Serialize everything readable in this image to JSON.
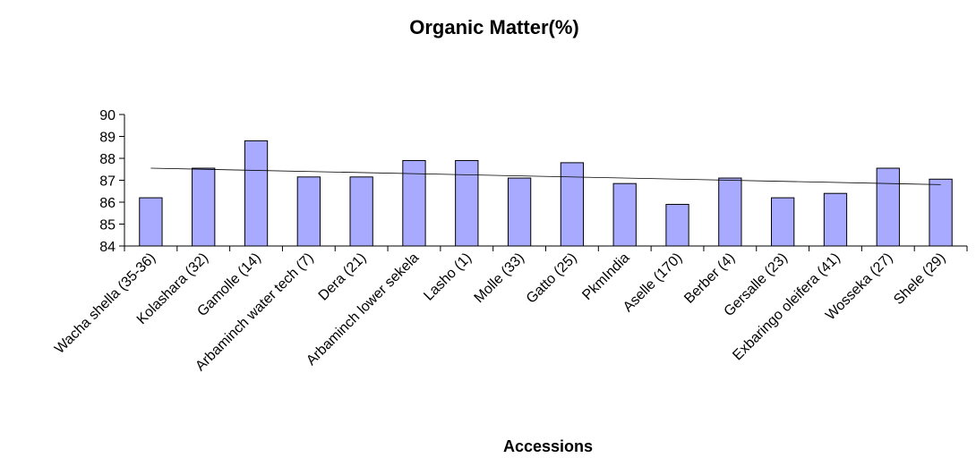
{
  "chart_data": {
    "type": "bar",
    "title": "Organic Matter(%)",
    "xlabel": "Accessions",
    "ylabel": "",
    "ylim": [
      84,
      90
    ],
    "yticks": [
      84,
      85,
      86,
      87,
      88,
      89,
      90
    ],
    "grid": false,
    "legend": "none",
    "bar_color": "#a8aaff",
    "bar_stroke": "#000000",
    "trendline": {
      "type": "linear",
      "start": 87.55,
      "end": 86.8,
      "color": "#000000"
    },
    "categories": [
      "Wacha shella (35-36)",
      "Kolashara (32)",
      "Gamolle (14)",
      "Arbaminch water tech (7)",
      "Dera (21)",
      "Arbaminch lower sekela",
      "Lasho (1)",
      "Molle (33)",
      "Gatto (25)",
      "PkmIndia",
      "Aselle (170)",
      "Berber (4)",
      "Gersalle (23)",
      "Exbaringo oleifera (41)",
      "Wosseka (27)",
      "Shele (29)"
    ],
    "values": [
      86.2,
      87.55,
      88.8,
      87.15,
      87.15,
      87.9,
      87.9,
      87.1,
      87.8,
      86.85,
      85.9,
      87.1,
      86.2,
      86.4,
      87.55,
      87.05
    ]
  }
}
